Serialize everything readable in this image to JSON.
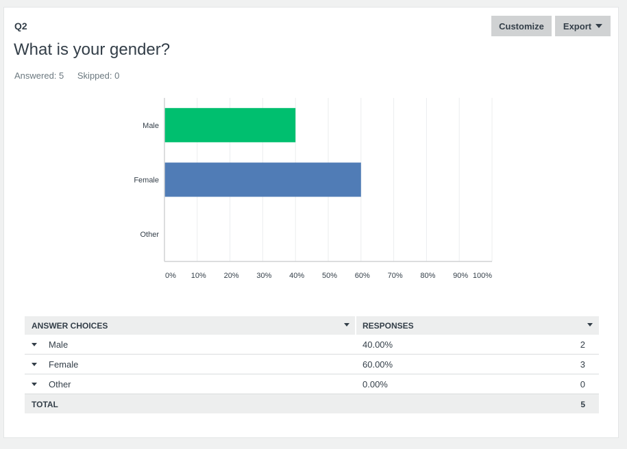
{
  "question": {
    "number": "Q2",
    "title": "What is your gender?",
    "answered": "Answered: 5",
    "skipped": "Skipped: 0"
  },
  "toolbar": {
    "customize_label": "Customize",
    "export_label": "Export"
  },
  "colors": {
    "male": "#00bf6f",
    "female": "#507cb6",
    "other": "#f9be00"
  },
  "chart_data": {
    "type": "bar",
    "orientation": "horizontal",
    "categories": [
      "Male",
      "Female",
      "Other"
    ],
    "values": [
      40,
      60,
      0
    ],
    "xlim": [
      0,
      100
    ],
    "xticks": [
      "0%",
      "10%",
      "20%",
      "30%",
      "40%",
      "50%",
      "60%",
      "70%",
      "80%",
      "90%",
      "100%"
    ],
    "grid": true
  },
  "table": {
    "headers": {
      "choices": "ANSWER CHOICES",
      "responses": "RESPONSES"
    },
    "rows": [
      {
        "label": "Male",
        "percent": "40.00%",
        "count": "2"
      },
      {
        "label": "Female",
        "percent": "60.00%",
        "count": "3"
      },
      {
        "label": "Other",
        "percent": "0.00%",
        "count": "0"
      }
    ],
    "total": {
      "label": "TOTAL",
      "count": "5"
    }
  }
}
